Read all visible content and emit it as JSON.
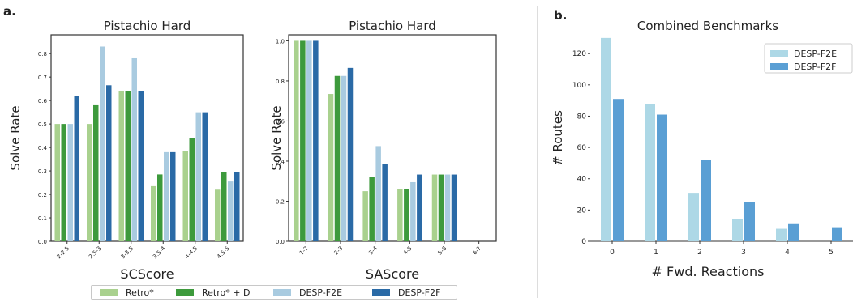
{
  "figure": {
    "panel_a_label": "a.",
    "panel_b_label": "b.",
    "legend_a": [
      {
        "label": "Retro*",
        "color": "#a9d18e"
      },
      {
        "label": "Retro* + D",
        "color": "#3d9a3c"
      },
      {
        "label": "DESP-F2E",
        "color": "#a9cbe0"
      },
      {
        "label": "DESP-F2F",
        "color": "#2a6aa6"
      }
    ]
  },
  "chart_data": [
    {
      "type": "bar",
      "title": "Pistachio Hard",
      "xlabel": "SCScore",
      "ylabel": "Solve Rate",
      "categories": [
        "2-2.5",
        "2.5-3",
        "3-3.5",
        "3.5-4",
        "4-4.5",
        "4.5-5"
      ],
      "ylim": [
        0,
        0.88
      ],
      "yticks": [
        "0.0",
        "0.1",
        "0.2",
        "0.3",
        "0.4",
        "0.5",
        "0.6",
        "0.7",
        "0.8"
      ],
      "grid": false,
      "series": [
        {
          "name": "Retro*",
          "color": "#a9d18e",
          "values": [
            0.5,
            0.5,
            0.64,
            0.235,
            0.385,
            0.22
          ]
        },
        {
          "name": "Retro* + D",
          "color": "#3d9a3c",
          "values": [
            0.5,
            0.58,
            0.64,
            0.285,
            0.44,
            0.295
          ]
        },
        {
          "name": "DESP-F2E",
          "color": "#a9cbe0",
          "values": [
            0.5,
            0.83,
            0.78,
            0.38,
            0.55,
            0.255
          ]
        },
        {
          "name": "DESP-F2F",
          "color": "#2a6aa6",
          "values": [
            0.62,
            0.665,
            0.64,
            0.38,
            0.55,
            0.295
          ]
        }
      ]
    },
    {
      "type": "bar",
      "title": "Pistachio Hard",
      "xlabel": "SAScore",
      "ylabel": "Solve Rate",
      "categories": [
        "1-2",
        "2-3",
        "3-4",
        "4-5",
        "5-6",
        "6-7"
      ],
      "ylim": [
        0,
        1.03
      ],
      "yticks": [
        "0.0",
        "0.2",
        "0.4",
        "0.6",
        "0.8",
        "1.0"
      ],
      "grid": false,
      "series": [
        {
          "name": "Retro*",
          "color": "#a9d18e",
          "values": [
            1.0,
            0.735,
            0.25,
            0.26,
            0.333,
            0
          ]
        },
        {
          "name": "Retro* + D",
          "color": "#3d9a3c",
          "values": [
            1.0,
            0.825,
            0.32,
            0.26,
            0.333,
            0
          ]
        },
        {
          "name": "DESP-F2E",
          "color": "#a9cbe0",
          "values": [
            1.0,
            0.825,
            0.475,
            0.295,
            0.333,
            0
          ]
        },
        {
          "name": "DESP-F2F",
          "color": "#2a6aa6",
          "values": [
            1.0,
            0.865,
            0.385,
            0.333,
            0.333,
            0
          ]
        }
      ]
    },
    {
      "type": "bar",
      "title": "Combined Benchmarks",
      "xlabel": "# Fwd. Reactions",
      "ylabel": "# Routes",
      "categories": [
        "0",
        "1",
        "2",
        "3",
        "4",
        "5"
      ],
      "ylim": [
        0,
        132
      ],
      "yticks": [
        "0",
        "20",
        "40",
        "60",
        "80",
        "100",
        "120"
      ],
      "grid": false,
      "legend_position": "top-right",
      "series": [
        {
          "name": "DESP-F2E",
          "color": "#add8e6",
          "values": [
            130,
            88,
            31,
            14,
            8,
            0
          ]
        },
        {
          "name": "DESP-F2F",
          "color": "#5a9fd4",
          "values": [
            91,
            81,
            52,
            25,
            11,
            9
          ]
        }
      ]
    }
  ]
}
